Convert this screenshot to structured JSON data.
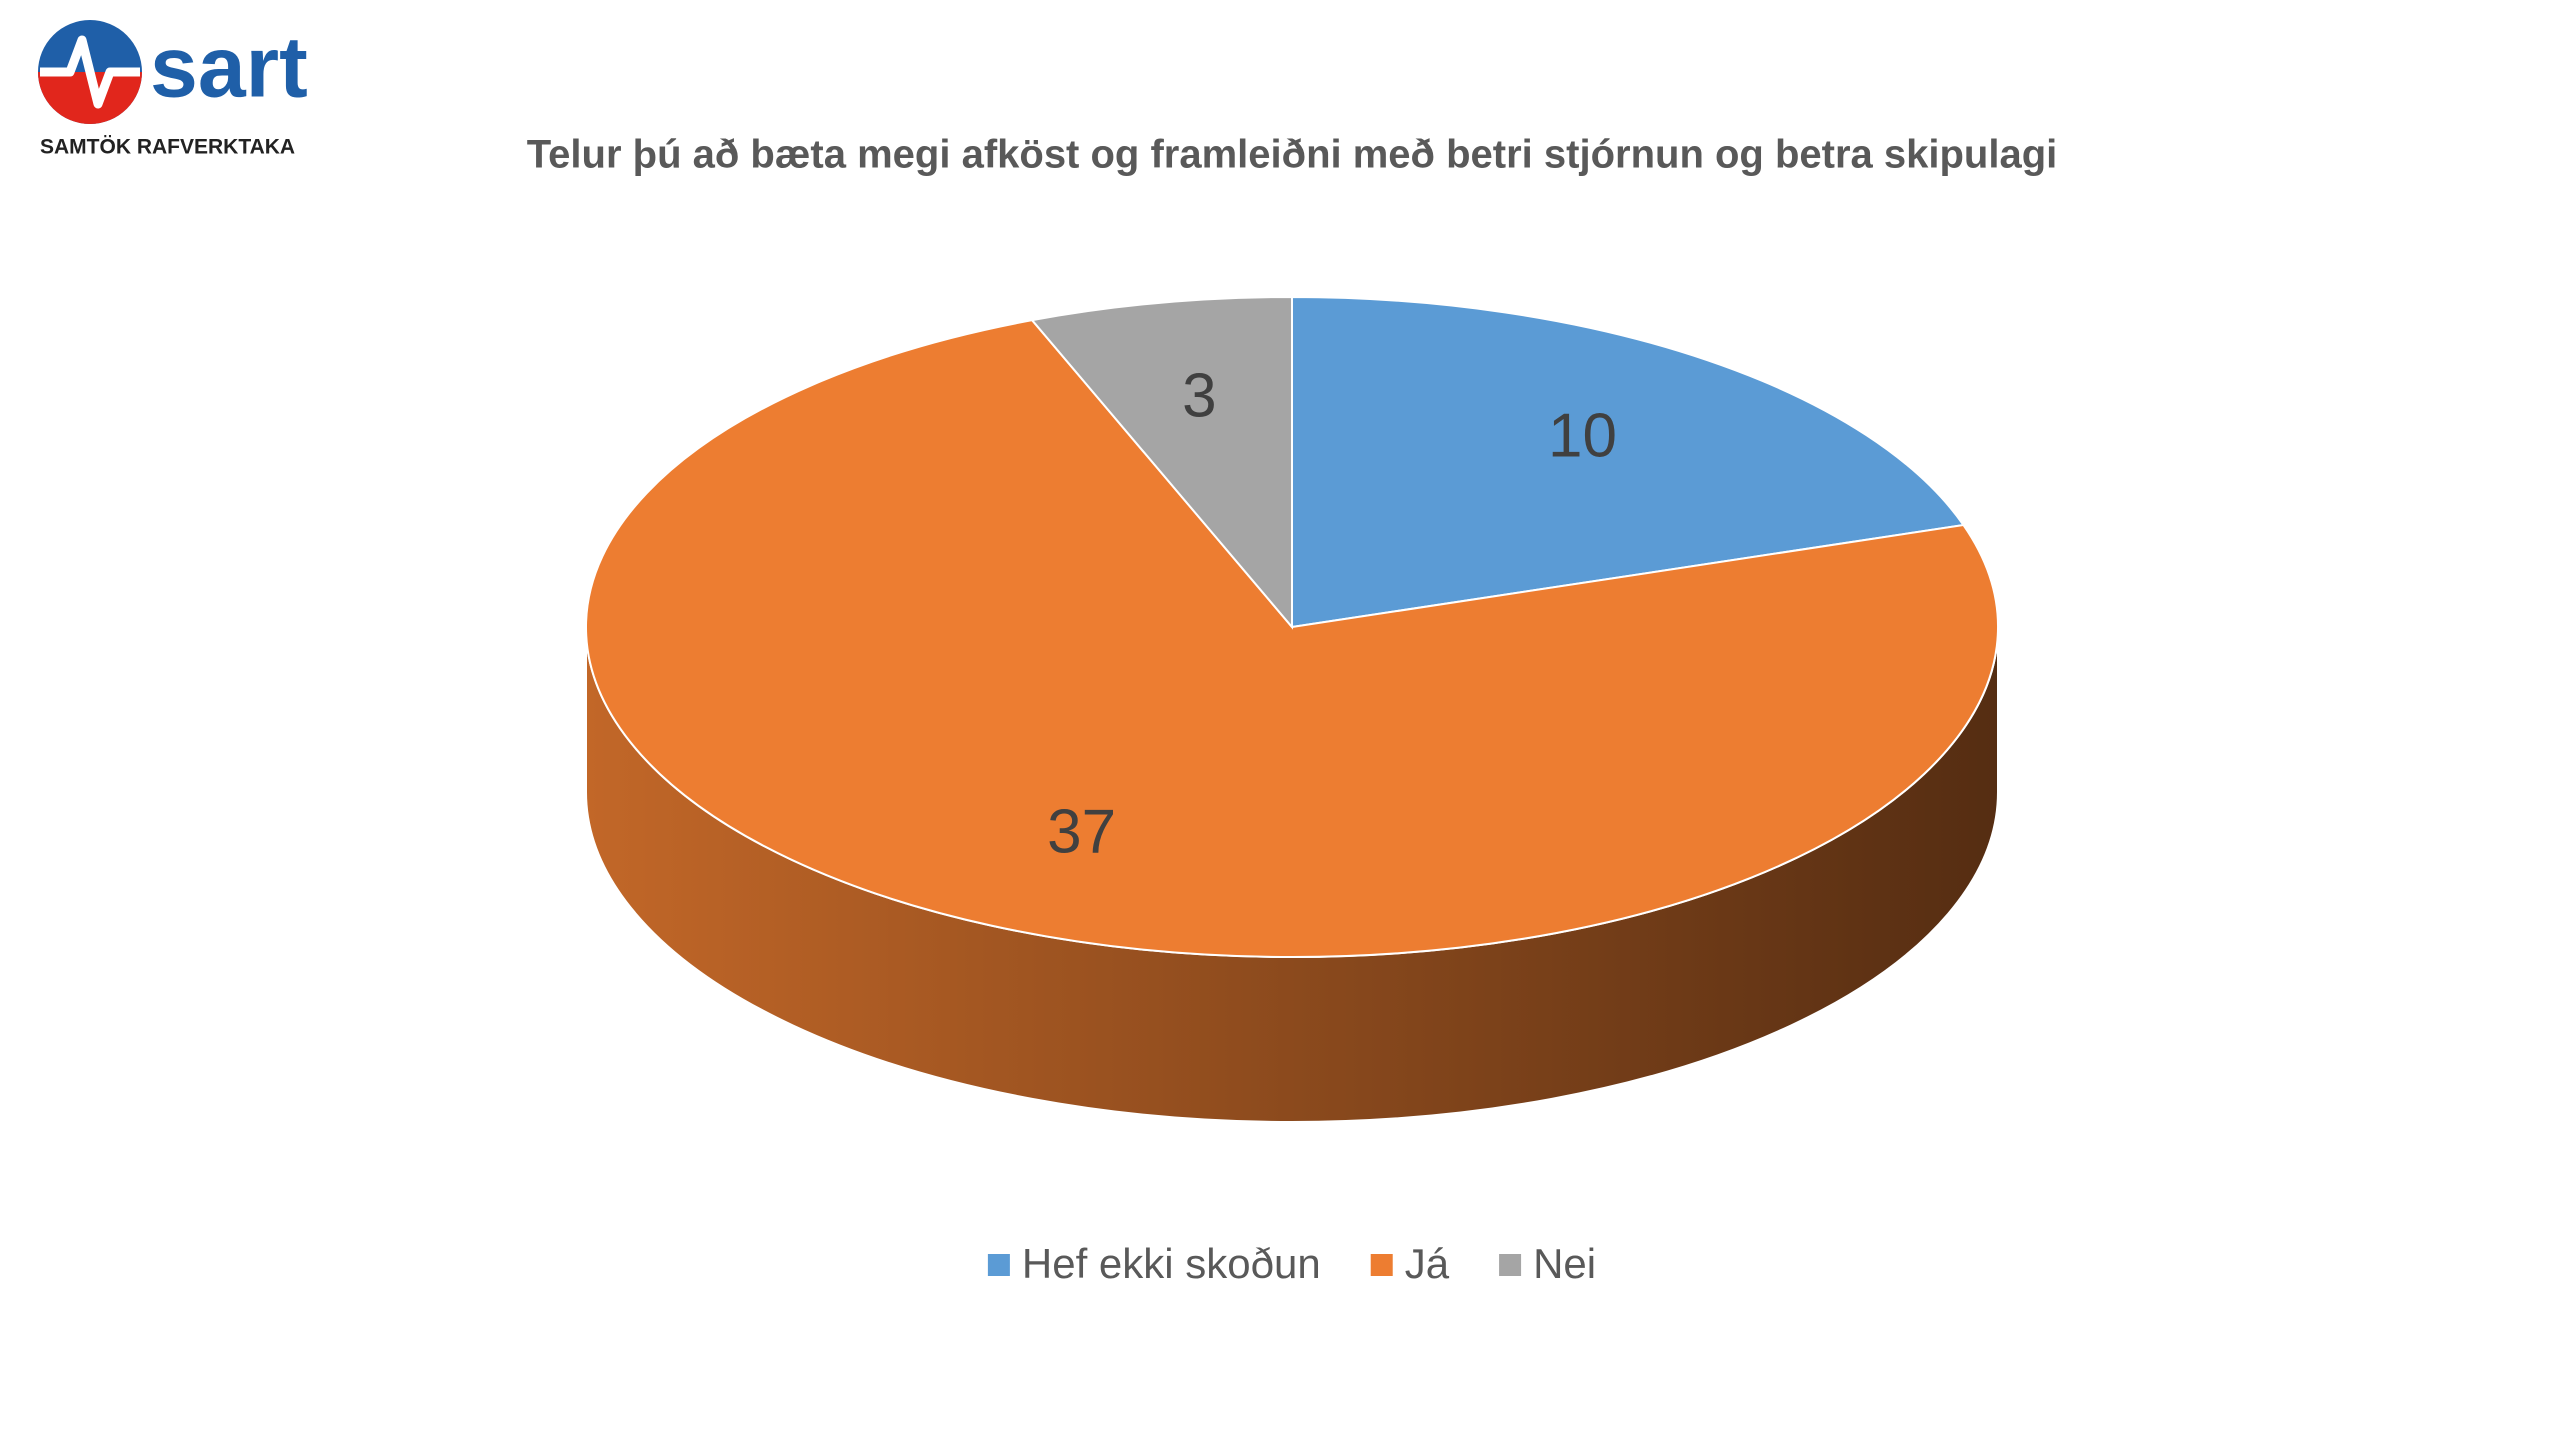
{
  "logo": {
    "name": "sart",
    "tagline": "SAMTÖK RAFVERKTAKA"
  },
  "chart_data": {
    "type": "pie",
    "title": "Telur þú að bæta megi afköst og framleiðni með betri stjórnun og betra skipulagi",
    "categories": [
      "Hef ekki skoðun",
      "Já",
      "Nei"
    ],
    "values": [
      10,
      37,
      3
    ],
    "colors": [
      "#5b9bd5",
      "#ed7d31",
      "#a5a5a5"
    ],
    "legend": "bottom"
  }
}
